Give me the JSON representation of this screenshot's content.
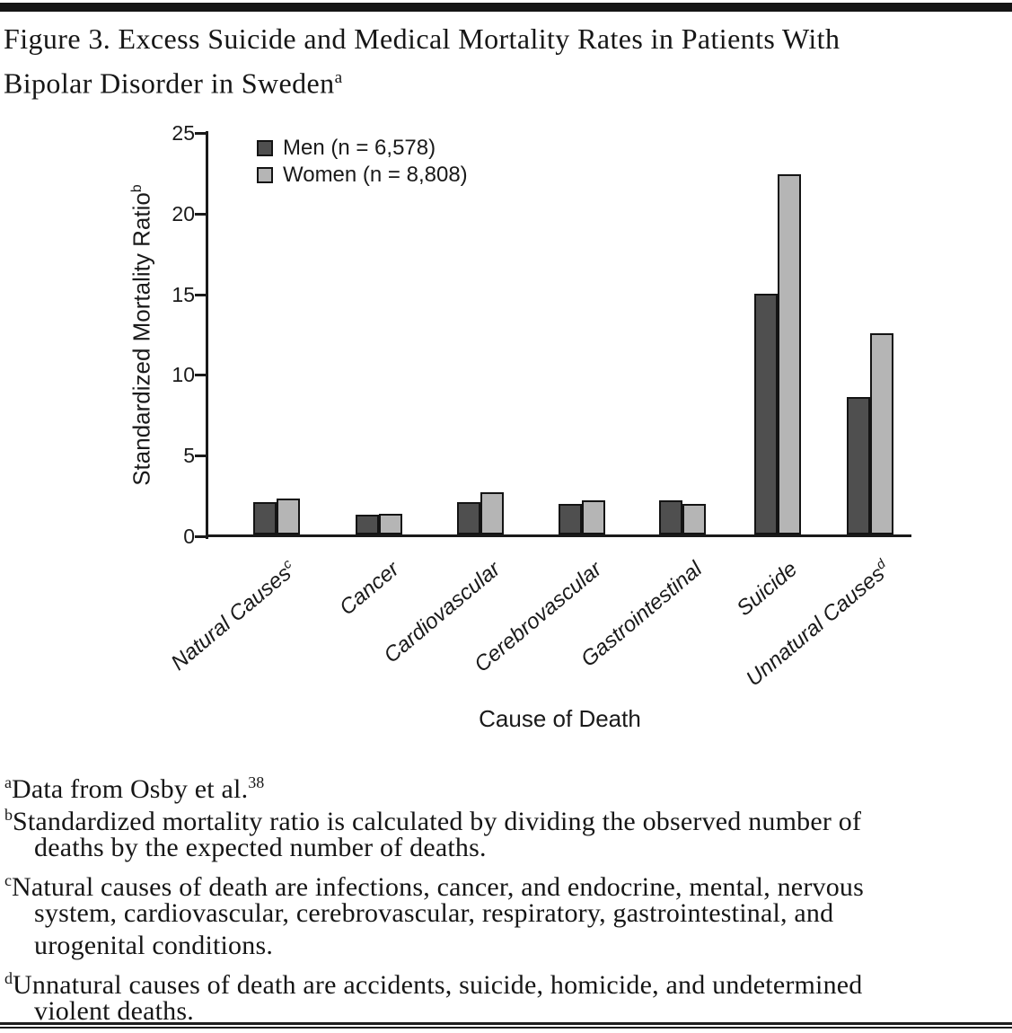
{
  "figure": {
    "title_line1": "Figure 3. Excess Suicide and Medical Mortality Rates in Patients With",
    "title_line2": "Bipolar Disorder in Sweden",
    "title_superscript": "a"
  },
  "chart_data": {
    "type": "bar",
    "title": "Excess Suicide and Medical Mortality Rates in Patients With Bipolar Disorder in Sweden",
    "xlabel": "Cause of Death",
    "ylabel": "Standardized Mortality Ratio",
    "ylabel_superscript": "b",
    "ylim": [
      0,
      25
    ],
    "yticks": [
      0,
      5,
      10,
      15,
      20,
      25
    ],
    "grid": false,
    "legend_position": "top-left-inside",
    "categories": [
      "Natural Causes",
      "Cancer",
      "Cardiovascular",
      "Cerebrovascular",
      "Gastrointestinal",
      "Suicide",
      "Unnatural Causes"
    ],
    "category_superscripts": [
      "c",
      "",
      "",
      "",
      "",
      "",
      "d"
    ],
    "series": [
      {
        "name": "Men (n = 6,578)",
        "key": "men",
        "color": "#4f4f4f",
        "values": [
          2.0,
          1.2,
          2.0,
          1.9,
          2.1,
          14.9,
          8.5
        ]
      },
      {
        "name": "Women (n = 8,808)",
        "key": "women",
        "color": "#b5b5b5",
        "values": [
          2.2,
          1.3,
          2.6,
          2.1,
          1.9,
          22.3,
          12.5
        ]
      }
    ]
  },
  "footnotes": [
    {
      "sup": "a",
      "lines": [
        "Data from Osby et al."
      ],
      "end_superscript": "38"
    },
    {
      "sup": "b",
      "lines": [
        "Standardized mortality ratio is calculated by dividing the observed number of",
        "deaths by the expected number of deaths."
      ]
    },
    {
      "sup": "c",
      "lines": [
        "Natural causes of death are infections, cancer, and endocrine, mental, nervous",
        "system, cardiovascular, cerebrovascular, respiratory, gastrointestinal, and",
        "urogenital conditions."
      ]
    },
    {
      "sup": "d",
      "lines": [
        "Unnatural causes of death are accidents, suicide, homicide, and undetermined",
        "violent deaths."
      ]
    }
  ],
  "colors": {
    "top_rule": "#151515",
    "bottom_rule": "#1c1c1c",
    "axis": "#1a1a1a",
    "text": "#1a1a1a",
    "men_bar": "#4f4f4f",
    "women_bar": "#b5b5b5"
  }
}
